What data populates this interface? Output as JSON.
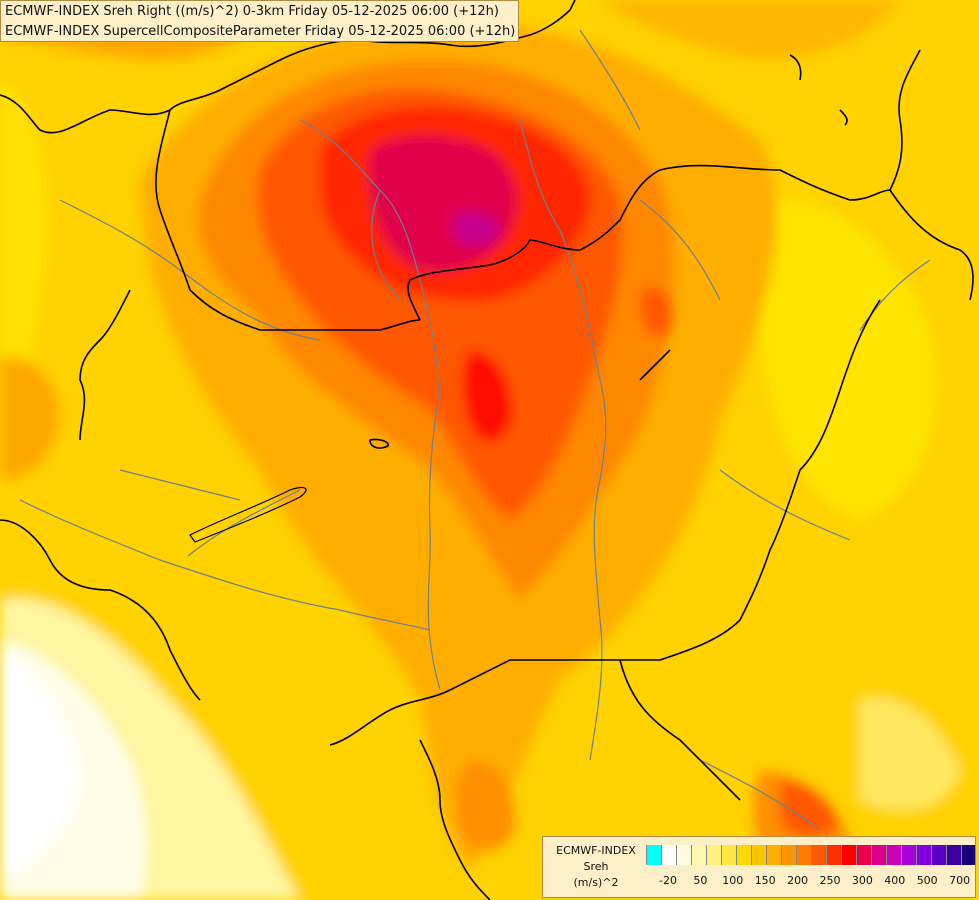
{
  "header": {
    "line1": "ECMWF-INDEX Sreh Right ((m/s)^2) 0-3km Friday 05-12-2025 06:00 (+12h)",
    "line2": "ECMWF-INDEX SupercellCompositeParameter Friday 05-12-2025 06:00 (+12h)"
  },
  "legend": {
    "title": "ECMWF-INDEX",
    "variable": "Sreh",
    "unit": "(m/s)^2",
    "colors": [
      "#00ffff",
      "#ffffff",
      "#fffce0",
      "#fff7b0",
      "#fff080",
      "#ffe840",
      "#ffd800",
      "#ffc400",
      "#ffae00",
      "#ff9600",
      "#ff7c00",
      "#ff5800",
      "#ff3000",
      "#ff0000",
      "#e8004c",
      "#d80088",
      "#c800b8",
      "#a800d8",
      "#8000e0",
      "#5a00c8",
      "#3c00a0",
      "#1a0078"
    ],
    "ticks": [
      "-20",
      "50",
      "100",
      "150",
      "200",
      "250",
      "300",
      "400",
      "500",
      "700"
    ]
  },
  "map": {
    "background_color": "#ffd000",
    "max_region_color": "#cc0090",
    "border_color": "#000000",
    "river_color": "#6a7a8a"
  }
}
